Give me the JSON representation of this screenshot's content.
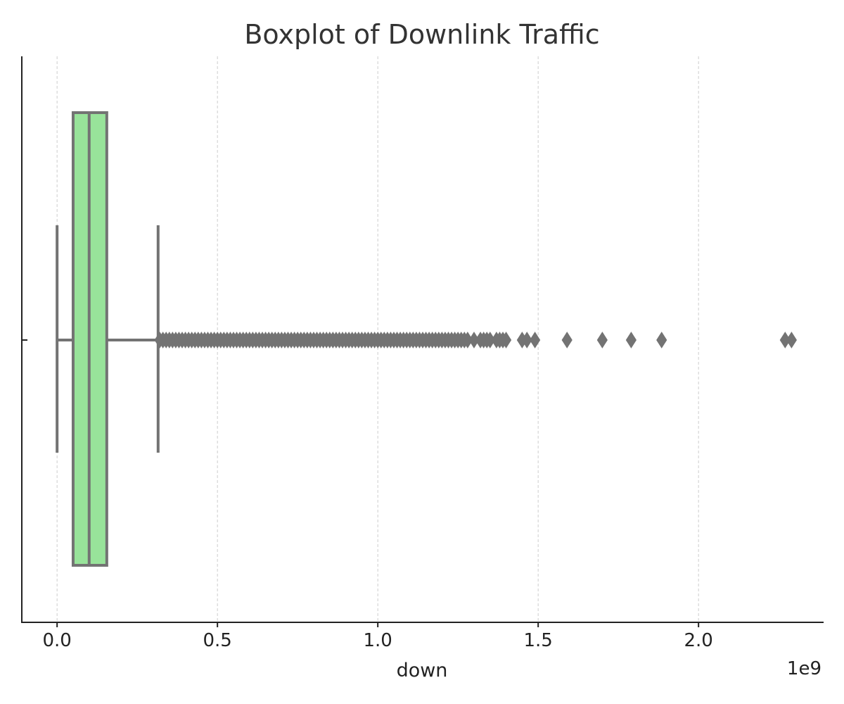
{
  "chart_data": {
    "type": "box",
    "title": "Boxplot of Downlink Traffic",
    "xlabel": "down",
    "x_offset_label": "1e9",
    "xlim": [
      -0.11,
      2.39
    ],
    "x_ticks": [
      0.0,
      0.5,
      1.0,
      1.5,
      2.0
    ],
    "x_tick_labels": [
      "0.0",
      "0.5",
      "1.0",
      "1.5",
      "2.0"
    ],
    "grid": "x-dashed",
    "orientation": "horizontal",
    "box_color": "#98e39a",
    "line_color": "#737373",
    "stats": {
      "whisker_low": 0.0,
      "q1": 0.05,
      "median": 0.1,
      "q3": 0.155,
      "whisker_high": 0.315
    },
    "outliers": [
      0.32,
      0.33,
      0.34,
      0.35,
      0.36,
      0.37,
      0.38,
      0.39,
      0.4,
      0.41,
      0.42,
      0.43,
      0.44,
      0.45,
      0.46,
      0.47,
      0.48,
      0.49,
      0.5,
      0.51,
      0.52,
      0.53,
      0.54,
      0.55,
      0.56,
      0.57,
      0.58,
      0.59,
      0.6,
      0.61,
      0.62,
      0.63,
      0.64,
      0.65,
      0.66,
      0.67,
      0.68,
      0.69,
      0.7,
      0.71,
      0.72,
      0.73,
      0.74,
      0.75,
      0.76,
      0.77,
      0.78,
      0.79,
      0.8,
      0.81,
      0.82,
      0.83,
      0.84,
      0.85,
      0.86,
      0.87,
      0.88,
      0.89,
      0.9,
      0.91,
      0.92,
      0.93,
      0.94,
      0.95,
      0.96,
      0.97,
      0.98,
      0.99,
      1.0,
      1.01,
      1.02,
      1.03,
      1.04,
      1.05,
      1.06,
      1.07,
      1.08,
      1.09,
      1.1,
      1.11,
      1.12,
      1.13,
      1.14,
      1.15,
      1.16,
      1.17,
      1.18,
      1.19,
      1.2,
      1.21,
      1.22,
      1.23,
      1.24,
      1.25,
      1.26,
      1.27,
      1.28,
      1.3,
      1.32,
      1.33,
      1.34,
      1.35,
      1.37,
      1.38,
      1.39,
      1.4,
      1.45,
      1.465,
      1.49,
      1.59,
      1.7,
      1.79,
      1.885,
      2.27,
      2.29
    ]
  }
}
